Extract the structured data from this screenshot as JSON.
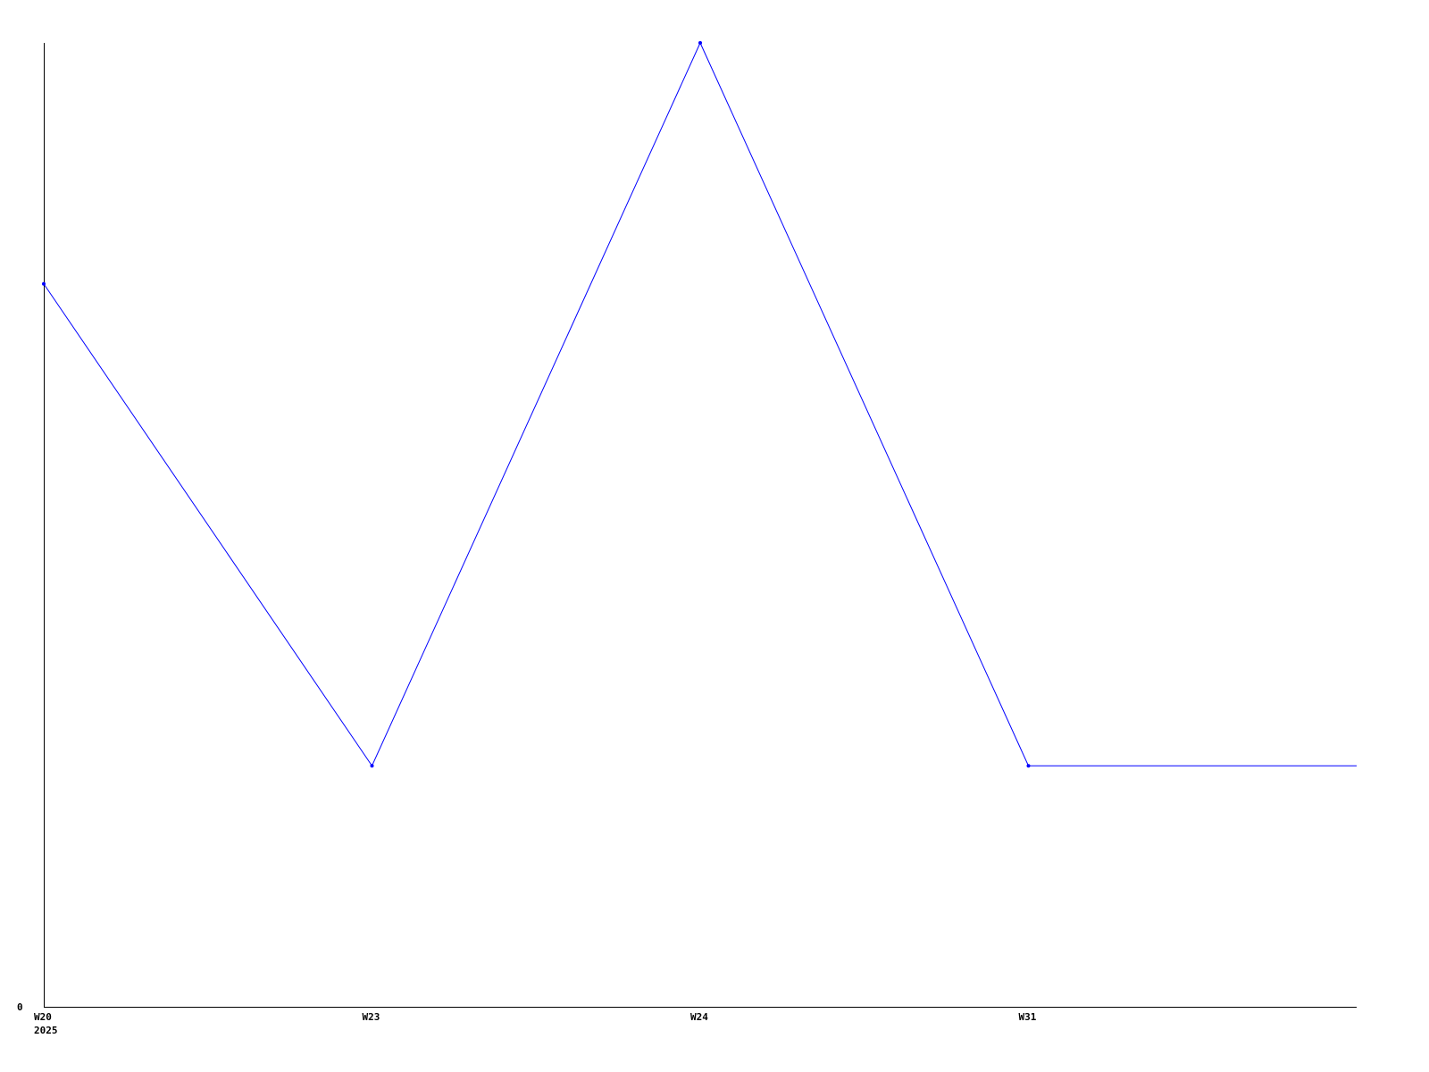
{
  "chart_data": {
    "type": "line",
    "title": "",
    "xlabel": "",
    "ylabel": "",
    "categories": [
      "W20",
      "W23",
      "W24",
      "W31"
    ],
    "x_sublabels": [
      "2025",
      "",
      "",
      ""
    ],
    "series": [
      {
        "values": [
          3,
          1,
          4,
          1
        ],
        "color": "#0000ff"
      }
    ],
    "extends_flat_to_axis_end": true,
    "y_tick_labels": [
      "0"
    ],
    "ylim": [
      0,
      4
    ],
    "grid": false,
    "legend": "none",
    "axis_color": "#000000"
  }
}
